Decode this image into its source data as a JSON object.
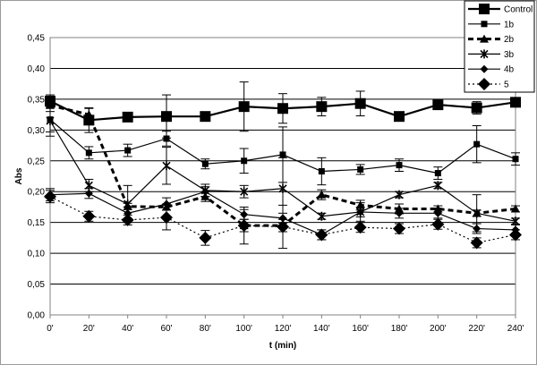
{
  "chart_data": {
    "type": "line",
    "xlabel": "t (min)",
    "ylabel": "Abs",
    "categories": [
      "0'",
      "20'",
      "40'",
      "60'",
      "80'",
      "100'",
      "120'",
      "140'",
      "160'",
      "180'",
      "200'",
      "220'",
      "240'"
    ],
    "ylim": [
      0,
      0.45
    ],
    "yticks": [
      "0,00",
      "0,05",
      "0,10",
      "0,15",
      "0,20",
      "0,25",
      "0,30",
      "0,35",
      "0,40",
      "0,45"
    ],
    "grid": true,
    "legend_position": "top-right",
    "series": [
      {
        "name": "Control",
        "marker": "square-large",
        "line": "solid-thick",
        "values": [
          0.347,
          0.316,
          0.321,
          0.322,
          0.322,
          0.338,
          0.335,
          0.338,
          0.343,
          0.322,
          0.341,
          0.336,
          0.345
        ],
        "errors": [
          0.01,
          0.02,
          0.006,
          0.035,
          0.006,
          0.04,
          0.024,
          0.015,
          0.02,
          0.006,
          0.006,
          0.01,
          0.006
        ]
      },
      {
        "name": "1b",
        "marker": "square-small",
        "line": "solid",
        "values": [
          0.317,
          0.263,
          0.267,
          0.286,
          0.245,
          0.25,
          0.26,
          0.233,
          0.236,
          0.243,
          0.23,
          0.277,
          0.253
        ],
        "errors": [
          0.02,
          0.01,
          0.01,
          0.012,
          0.008,
          0.02,
          0.045,
          0.022,
          0.008,
          0.01,
          0.01,
          0.03,
          0.01
        ]
      },
      {
        "name": "2b",
        "marker": "triangle",
        "line": "dashed-thick",
        "values": [
          0.34,
          0.325,
          0.176,
          0.175,
          0.192,
          0.145,
          0.145,
          0.195,
          0.178,
          0.172,
          0.172,
          0.165,
          0.172
        ],
        "errors": [
          0.01,
          0.01,
          0.005,
          0.005,
          0.008,
          0.01,
          0.01,
          0.008,
          0.008,
          0.008,
          0.005,
          0.005,
          0.005
        ]
      },
      {
        "name": "3b",
        "marker": "asterisk",
        "line": "solid",
        "values": [
          0.315,
          0.21,
          0.18,
          0.242,
          0.202,
          0.2,
          0.205,
          0.16,
          0.167,
          0.195,
          0.21,
          0.165,
          0.152
        ],
        "errors": [
          0.025,
          0.01,
          0.03,
          0.03,
          0.01,
          0.01,
          0.05,
          0.005,
          0.015,
          0.005,
          0.005,
          0.03,
          0.005
        ]
      },
      {
        "name": "4b",
        "marker": "diamond-small",
        "line": "solid",
        "values": [
          0.195,
          0.197,
          0.165,
          0.18,
          0.2,
          0.163,
          0.157,
          0.13,
          0.167,
          0.165,
          0.165,
          0.14,
          0.138
        ],
        "errors": [
          0.01,
          0.008,
          0.01,
          0.01,
          0.008,
          0.008,
          0.008,
          0.008,
          0.008,
          0.008,
          0.008,
          0.008,
          0.008
        ]
      },
      {
        "name": "5",
        "marker": "diamond-large",
        "line": "dotted",
        "values": [
          0.192,
          0.16,
          0.154,
          0.158,
          0.125,
          0.145,
          0.143,
          0.13,
          0.142,
          0.14,
          0.147,
          0.117,
          0.13
        ],
        "errors": [
          0.01,
          0.008,
          0.008,
          0.02,
          0.012,
          0.03,
          0.035,
          0.008,
          0.008,
          0.008,
          0.008,
          0.008,
          0.008
        ]
      }
    ]
  }
}
